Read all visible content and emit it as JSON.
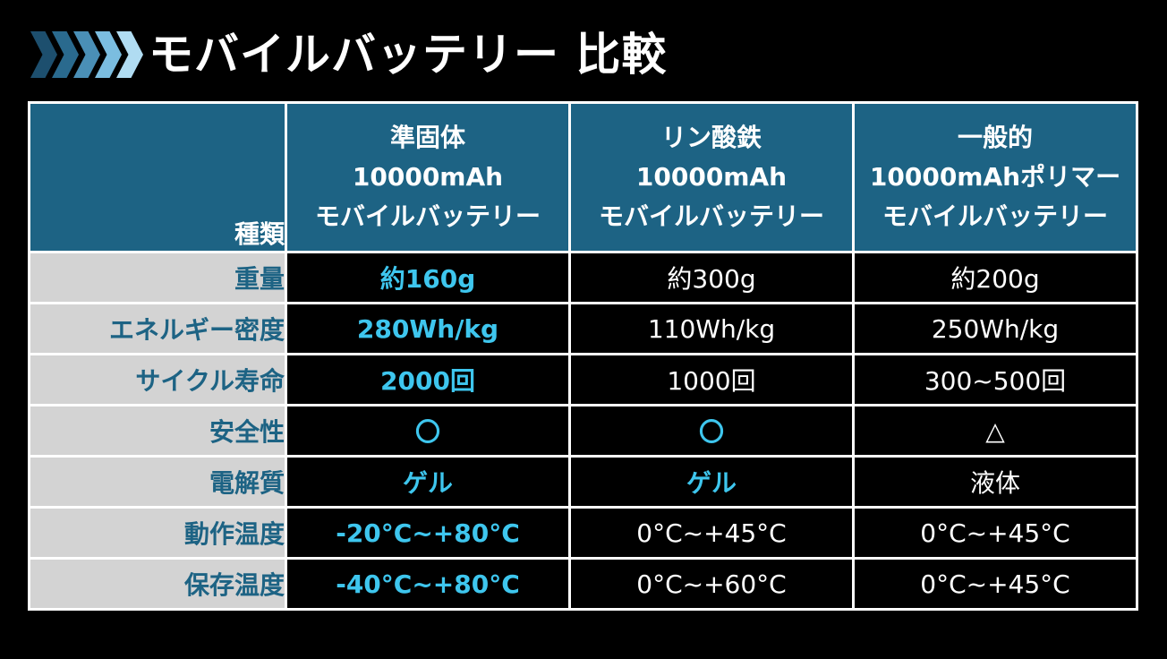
{
  "colors": {
    "background": "#000000",
    "header_fill": "#1d6384",
    "label_fill": "#d3d3d3",
    "label_text": "#1d6384",
    "highlight_text": "#3ec6ee",
    "chevron_colors": [
      "#1d4f6e",
      "#2a6a8e",
      "#4a8fb6",
      "#7bbde0",
      "#b0dcf2"
    ]
  },
  "title": "モバイルバッテリー 比較",
  "table": {
    "header_label": "種類",
    "columns": [
      {
        "lines": [
          "準固体",
          "10000mAh",
          "モバイルバッテリー"
        ]
      },
      {
        "lines": [
          "リン酸鉄",
          "10000mAh",
          "モバイルバッテリー"
        ]
      },
      {
        "lines": [
          "一般的",
          "10000mAhポリマー",
          "モバイルバッテリー"
        ]
      }
    ],
    "rows": [
      {
        "label": "重量",
        "values": [
          "約160g",
          "約300g",
          "約200g"
        ],
        "highlight": [
          true,
          false,
          false
        ]
      },
      {
        "label": "エネルギー密度",
        "values": [
          "280Wh/kg",
          "110Wh/kg",
          "250Wh/kg"
        ],
        "highlight": [
          true,
          false,
          false
        ]
      },
      {
        "label": "サイクル寿命",
        "values": [
          "2000回",
          "1000回",
          "300~500回"
        ],
        "highlight": [
          true,
          false,
          false
        ]
      },
      {
        "label": "安全性",
        "values": [
          "〇",
          "〇",
          "△"
        ],
        "highlight": [
          true,
          true,
          false
        ]
      },
      {
        "label": "電解質",
        "values": [
          "ゲル",
          "ゲル",
          "液体"
        ],
        "highlight": [
          true,
          true,
          false
        ]
      },
      {
        "label": "動作温度",
        "values": [
          "-20°C~+80°C",
          "0°C~+45°C",
          "0°C~+45°C"
        ],
        "highlight": [
          true,
          false,
          false
        ]
      },
      {
        "label": "保存温度",
        "values": [
          "-40°C~+80°C",
          "0°C~+60°C",
          "0°C~+45°C"
        ],
        "highlight": [
          true,
          false,
          false
        ]
      }
    ]
  }
}
